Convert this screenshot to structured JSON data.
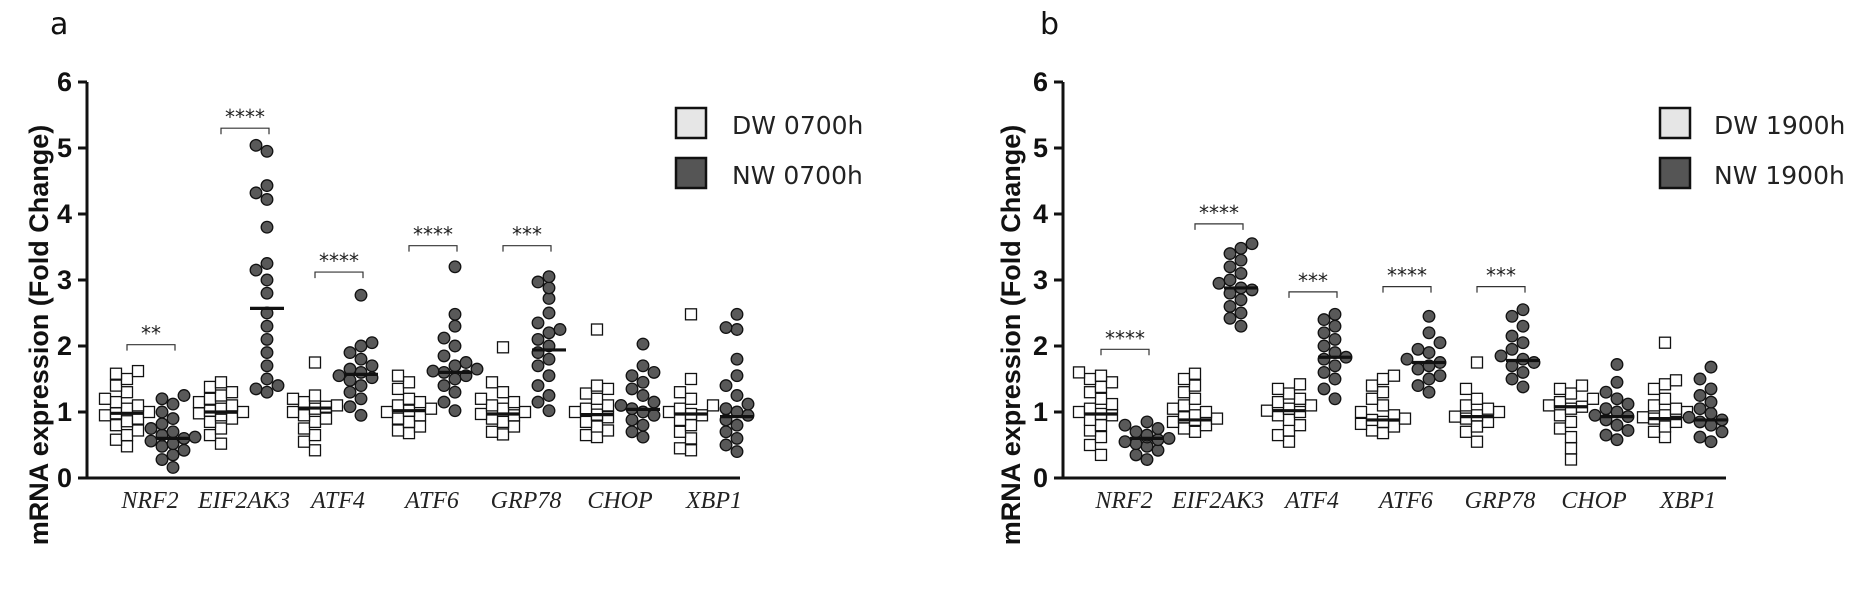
{
  "colors": {
    "dw_fill": "#ffffff",
    "nw_fill": "#595959",
    "legend_dw": "#e6e6e6",
    "legend_nw": "#555555",
    "stroke": "#111111"
  },
  "chart_data": [
    {
      "panel": "a",
      "type": "scatter",
      "ylabel": "mRNA expression (Fold Change)",
      "ylim": [
        0,
        6
      ],
      "yticks": [
        "0",
        "1",
        "2",
        "3",
        "4",
        "5",
        "6"
      ],
      "categories": [
        "NRF2",
        "EIF2AK3",
        "ATF4",
        "ATF6",
        "GRP78",
        "CHOP",
        "XBP1"
      ],
      "legend": [
        "DW 0700h",
        "NW 0700h"
      ],
      "series": [
        {
          "name": "DW 0700h",
          "marker": "square",
          "medians": [
            0.98,
            1.0,
            1.06,
            1.02,
            0.97,
            0.96,
            0.97
          ],
          "points": [
            [
              0.48,
              0.58,
              0.65,
              0.72,
              0.8,
              0.86,
              0.9,
              0.95,
              0.98,
              1.0,
              1.05,
              1.1,
              1.15,
              1.2,
              1.3,
              1.4,
              1.5,
              1.58,
              1.62
            ],
            [
              0.52,
              0.65,
              0.75,
              0.85,
              0.9,
              0.95,
              0.98,
              1.0,
              1.02,
              1.05,
              1.1,
              1.15,
              1.2,
              1.25,
              1.3,
              1.38,
              1.45
            ],
            [
              0.42,
              0.55,
              0.65,
              0.75,
              0.85,
              0.9,
              0.95,
              1.0,
              1.05,
              1.08,
              1.1,
              1.15,
              1.2,
              1.25,
              1.75
            ],
            [
              0.68,
              0.72,
              0.78,
              0.85,
              0.9,
              0.95,
              1.0,
              1.02,
              1.05,
              1.1,
              1.15,
              1.2,
              1.35,
              1.45,
              1.55
            ],
            [
              0.66,
              0.7,
              0.78,
              0.85,
              0.9,
              0.95,
              0.97,
              1.0,
              1.05,
              1.1,
              1.15,
              1.2,
              1.3,
              1.45,
              1.98
            ],
            [
              0.62,
              0.65,
              0.72,
              0.78,
              0.85,
              0.92,
              0.96,
              1.0,
              1.05,
              1.1,
              1.2,
              1.28,
              1.35,
              1.4,
              2.25
            ],
            [
              0.42,
              0.45,
              0.6,
              0.7,
              0.8,
              0.88,
              0.95,
              0.97,
              1.0,
              1.05,
              1.1,
              1.2,
              1.3,
              1.5,
              2.48
            ]
          ]
        },
        {
          "name": "NW 0700h",
          "marker": "circle",
          "medians": [
            0.6,
            2.57,
            1.57,
            1.6,
            1.94,
            1.04,
            0.93
          ],
          "points": [
            [
              0.16,
              0.28,
              0.35,
              0.42,
              0.48,
              0.52,
              0.56,
              0.6,
              0.62,
              0.65,
              0.7,
              0.75,
              0.82,
              0.9,
              1.0,
              1.12,
              1.2,
              1.25
            ],
            [
              1.3,
              1.35,
              1.4,
              1.5,
              1.7,
              1.9,
              2.1,
              2.3,
              2.5,
              2.8,
              3.0,
              3.15,
              3.25,
              3.8,
              4.22,
              4.32,
              4.43,
              4.95,
              5.04
            ],
            [
              0.95,
              1.08,
              1.2,
              1.3,
              1.4,
              1.48,
              1.52,
              1.55,
              1.6,
              1.65,
              1.7,
              1.8,
              1.9,
              2.0,
              2.05,
              2.77
            ],
            [
              1.02,
              1.15,
              1.3,
              1.4,
              1.5,
              1.55,
              1.6,
              1.62,
              1.65,
              1.7,
              1.75,
              1.85,
              2.0,
              2.12,
              2.3,
              2.48,
              3.2
            ],
            [
              1.02,
              1.15,
              1.25,
              1.4,
              1.55,
              1.7,
              1.8,
              1.9,
              2.0,
              2.1,
              2.2,
              2.25,
              2.35,
              2.5,
              2.72,
              2.88,
              2.97,
              3.05
            ],
            [
              0.62,
              0.7,
              0.8,
              0.88,
              0.95,
              1.0,
              1.05,
              1.1,
              1.15,
              1.25,
              1.35,
              1.45,
              1.55,
              1.6,
              1.7,
              2.03
            ],
            [
              0.4,
              0.5,
              0.6,
              0.7,
              0.8,
              0.88,
              0.95,
              1.0,
              1.05,
              1.12,
              1.25,
              1.4,
              1.55,
              1.8,
              2.25,
              2.28,
              2.48
            ]
          ]
        }
      ],
      "significance": [
        {
          "category": "NRF2",
          "label": "**",
          "y": 2.02
        },
        {
          "category": "EIF2AK3",
          "label": "****",
          "y": 5.3
        },
        {
          "category": "ATF4",
          "label": "****",
          "y": 3.12
        },
        {
          "category": "ATF6",
          "label": "****",
          "y": 3.52
        },
        {
          "category": "GRP78",
          "label": "***",
          "y": 3.52
        }
      ]
    },
    {
      "panel": "b",
      "type": "scatter",
      "ylabel": "mRNA expression (Fold Change)",
      "ylim": [
        0,
        6
      ],
      "yticks": [
        "0",
        "1",
        "2",
        "3",
        "4",
        "5",
        "6"
      ],
      "categories": [
        "NRF2",
        "EIF2AK3",
        "ATF4",
        "ATF6",
        "GRP78",
        "CHOP",
        "XBP1"
      ],
      "legend": [
        "DW 1900h",
        "NW 1900h"
      ],
      "series": [
        {
          "name": "DW 1900h",
          "marker": "square",
          "medians": [
            0.97,
            0.88,
            1.02,
            0.88,
            0.93,
            1.08,
            0.9
          ],
          "points": [
            [
              0.35,
              0.5,
              0.62,
              0.72,
              0.8,
              0.88,
              0.95,
              0.97,
              1.0,
              1.05,
              1.12,
              1.2,
              1.3,
              1.38,
              1.45,
              1.5,
              1.55,
              1.6
            ],
            [
              0.7,
              0.75,
              0.8,
              0.85,
              0.88,
              0.9,
              0.92,
              0.95,
              1.0,
              1.05,
              1.1,
              1.2,
              1.3,
              1.4,
              1.5,
              1.58
            ],
            [
              0.55,
              0.65,
              0.72,
              0.8,
              0.88,
              0.95,
              1.0,
              1.02,
              1.05,
              1.1,
              1.15,
              1.2,
              1.28,
              1.35,
              1.42
            ],
            [
              0.68,
              0.72,
              0.78,
              0.82,
              0.85,
              0.88,
              0.9,
              0.95,
              1.0,
              1.1,
              1.2,
              1.3,
              1.4,
              1.5,
              1.55
            ],
            [
              0.55,
              0.7,
              0.78,
              0.85,
              0.9,
              0.93,
              0.95,
              1.0,
              1.05,
              1.1,
              1.2,
              1.35,
              1.75
            ],
            [
              0.28,
              0.45,
              0.62,
              0.75,
              0.85,
              0.95,
              1.05,
              1.08,
              1.1,
              1.15,
              1.2,
              1.28,
              1.35,
              1.4
            ],
            [
              0.62,
              0.7,
              0.78,
              0.85,
              0.9,
              0.92,
              0.95,
              1.0,
              1.05,
              1.1,
              1.2,
              1.35,
              1.42,
              1.48,
              2.05
            ]
          ]
        },
        {
          "name": "NW 1900h",
          "marker": "circle",
          "medians": [
            0.6,
            2.88,
            1.83,
            1.75,
            1.78,
            0.93,
            0.88
          ],
          "points": [
            [
              0.28,
              0.35,
              0.42,
              0.48,
              0.52,
              0.55,
              0.58,
              0.6,
              0.62,
              0.65,
              0.7,
              0.75,
              0.8,
              0.85
            ],
            [
              2.3,
              2.42,
              2.5,
              2.6,
              2.7,
              2.8,
              2.85,
              2.88,
              2.95,
              3.0,
              3.1,
              3.2,
              3.3,
              3.4,
              3.48,
              3.55
            ],
            [
              1.2,
              1.35,
              1.5,
              1.6,
              1.7,
              1.8,
              1.83,
              1.9,
              2.0,
              2.1,
              2.2,
              2.3,
              2.4,
              2.48
            ],
            [
              1.3,
              1.4,
              1.5,
              1.55,
              1.65,
              1.7,
              1.75,
              1.8,
              1.9,
              1.95,
              2.05,
              2.2,
              2.45
            ],
            [
              1.38,
              1.5,
              1.6,
              1.7,
              1.75,
              1.8,
              1.85,
              1.95,
              2.05,
              2.15,
              2.3,
              2.45,
              2.55
            ],
            [
              0.58,
              0.65,
              0.72,
              0.8,
              0.88,
              0.93,
              0.95,
              1.0,
              1.05,
              1.12,
              1.2,
              1.3,
              1.45,
              1.72
            ],
            [
              0.55,
              0.62,
              0.7,
              0.8,
              0.85,
              0.88,
              0.92,
              0.98,
              1.05,
              1.15,
              1.25,
              1.35,
              1.5,
              1.68
            ]
          ]
        }
      ],
      "significance": [
        {
          "category": "NRF2",
          "label": "****",
          "y": 1.95
        },
        {
          "category": "EIF2AK3",
          "label": "****",
          "y": 3.85
        },
        {
          "category": "ATF4",
          "label": "***",
          "y": 2.82
        },
        {
          "category": "ATF6",
          "label": "****",
          "y": 2.9
        },
        {
          "category": "GRP78",
          "label": "***",
          "y": 2.9
        }
      ]
    }
  ]
}
